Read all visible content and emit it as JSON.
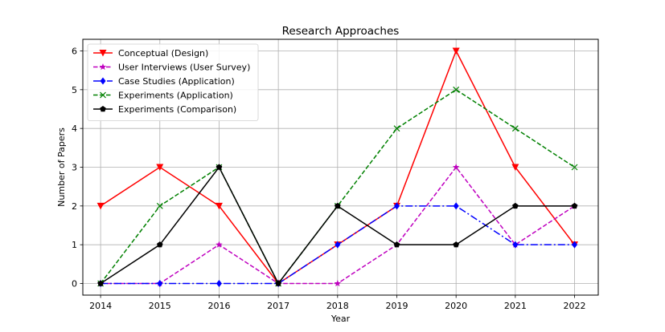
{
  "chart_data": {
    "type": "line",
    "title": "Research Approaches",
    "xlabel": "Year",
    "ylabel": "Number of Papers",
    "x": [
      2014,
      2015,
      2016,
      2017,
      2018,
      2019,
      2020,
      2021,
      2022
    ],
    "xlim": [
      2013.7,
      2022.4
    ],
    "ylim": [
      -0.3,
      6.3
    ],
    "yticks": [
      0,
      1,
      2,
      3,
      4,
      5,
      6
    ],
    "grid": true,
    "legend_position": "top-left",
    "series": [
      {
        "name": "Conceptual (Design)",
        "values": [
          2,
          3,
          2,
          0,
          1,
          2,
          6,
          3,
          1
        ],
        "color": "#ff0000",
        "dash": "solid",
        "marker": "triangle-down"
      },
      {
        "name": "User Interviews (User Survey)",
        "values": [
          0,
          0,
          1,
          0,
          0,
          1,
          3,
          1,
          2
        ],
        "color": "#bf00bf",
        "dash": "dashed",
        "marker": "star"
      },
      {
        "name": "Case Studies (Application)",
        "values": [
          0,
          0,
          0,
          0,
          1,
          2,
          2,
          1,
          1
        ],
        "color": "#0000ff",
        "dash": "dashdot",
        "marker": "diamond"
      },
      {
        "name": "Experiments (Application)",
        "values": [
          0,
          2,
          3,
          0,
          2,
          4,
          5,
          4,
          3
        ],
        "color": "#008000",
        "dash": "dashed",
        "marker": "x"
      },
      {
        "name": "Experiments (Comparison)",
        "values": [
          0,
          1,
          3,
          0,
          2,
          1,
          1,
          2,
          2
        ],
        "color": "#000000",
        "dash": "solid",
        "marker": "pentagon"
      }
    ]
  }
}
